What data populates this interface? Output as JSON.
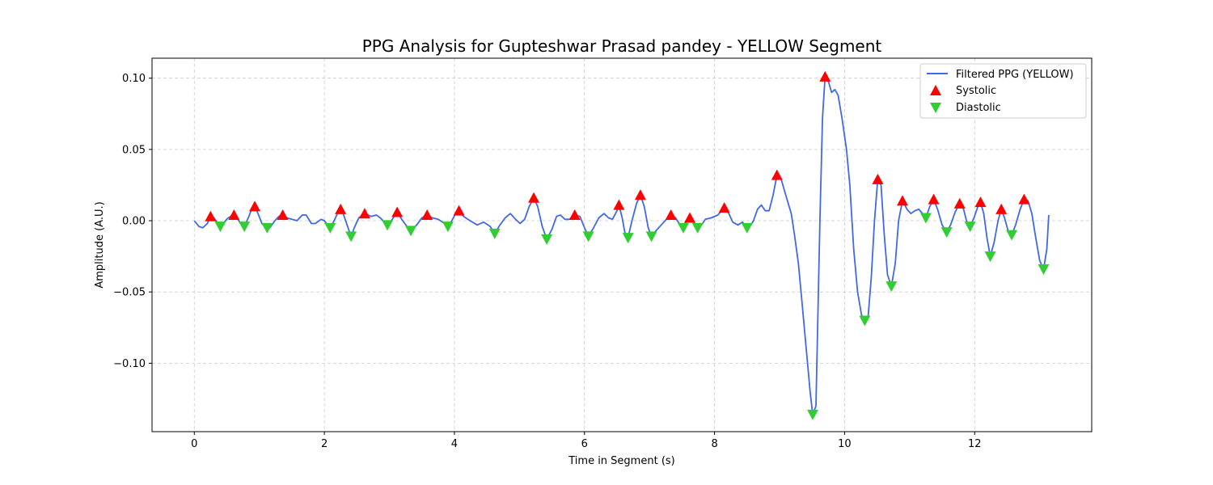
{
  "chart_data": {
    "type": "line",
    "title": "PPG Analysis for Gupteshwar Prasad pandey - YELLOW Segment",
    "xlabel": "Time in Segment (s)",
    "ylabel": "Amplitude (A.U.)",
    "xlim": [
      -0.65,
      13.8
    ],
    "ylim": [
      -0.148,
      0.114
    ],
    "xticks": [
      0,
      2,
      4,
      6,
      8,
      10,
      12
    ],
    "xtick_labels": [
      "0",
      "2",
      "4",
      "6",
      "8",
      "10",
      "12"
    ],
    "yticks": [
      0.1,
      0.05,
      0.0,
      -0.05,
      -0.1
    ],
    "ytick_labels": [
      "0.10",
      "0.05",
      "0.00",
      "−0.05",
      "−0.10"
    ],
    "grid": true,
    "legend_position": "upper right",
    "colors": {
      "line": "#4169e1",
      "systolic": "#ff0000",
      "diastolic": "#32cd32",
      "grid": "#cccccc"
    },
    "series": [
      {
        "name": "Filtered PPG (YELLOW)",
        "kind": "line",
        "points": [
          [
            0.0,
            0.0
          ],
          [
            0.07,
            -0.004
          ],
          [
            0.13,
            -0.005
          ],
          [
            0.2,
            -0.002
          ],
          [
            0.25,
            0.003
          ],
          [
            0.3,
            0.002
          ],
          [
            0.35,
            -0.001
          ],
          [
            0.4,
            -0.004
          ],
          [
            0.46,
            -0.001
          ],
          [
            0.52,
            0.002
          ],
          [
            0.6,
            0.004
          ],
          [
            0.66,
            0.002
          ],
          [
            0.71,
            -0.002
          ],
          [
            0.77,
            -0.004
          ],
          [
            0.84,
            0.003
          ],
          [
            0.88,
            0.008
          ],
          [
            0.93,
            0.01
          ],
          [
            0.98,
            0.005
          ],
          [
            1.04,
            -0.002
          ],
          [
            1.1,
            -0.005
          ],
          [
            1.16,
            -0.005
          ],
          [
            1.24,
            0.0
          ],
          [
            1.3,
            0.003
          ],
          [
            1.36,
            0.004
          ],
          [
            1.42,
            0.002
          ],
          [
            1.5,
            0.001
          ],
          [
            1.58,
            0.0
          ],
          [
            1.66,
            0.004
          ],
          [
            1.72,
            0.004
          ],
          [
            1.8,
            -0.002
          ],
          [
            1.86,
            -0.002
          ],
          [
            1.95,
            0.001
          ],
          [
            2.0,
            0.0
          ],
          [
            2.05,
            -0.003
          ],
          [
            2.09,
            -0.005
          ],
          [
            2.15,
            0.0
          ],
          [
            2.2,
            0.005
          ],
          [
            2.25,
            0.008
          ],
          [
            2.29,
            0.005
          ],
          [
            2.35,
            -0.003
          ],
          [
            2.41,
            -0.011
          ],
          [
            2.46,
            -0.005
          ],
          [
            2.53,
            0.002
          ],
          [
            2.62,
            0.005
          ],
          [
            2.72,
            0.003
          ],
          [
            2.8,
            0.004
          ],
          [
            2.86,
            0.002
          ],
          [
            2.94,
            -0.002
          ],
          [
            2.97,
            -0.003
          ],
          [
            3.03,
            0.0
          ],
          [
            3.12,
            0.006
          ],
          [
            3.19,
            0.001
          ],
          [
            3.27,
            -0.004
          ],
          [
            3.33,
            -0.007
          ],
          [
            3.42,
            -0.003
          ],
          [
            3.5,
            0.002
          ],
          [
            3.58,
            0.004
          ],
          [
            3.66,
            0.002
          ],
          [
            3.75,
            0.001
          ],
          [
            3.85,
            -0.002
          ],
          [
            3.9,
            -0.004
          ],
          [
            3.96,
            0.0
          ],
          [
            4.02,
            0.005
          ],
          [
            4.07,
            0.007
          ],
          [
            4.14,
            0.003
          ],
          [
            4.24,
            0.0
          ],
          [
            4.35,
            -0.003
          ],
          [
            4.45,
            -0.001
          ],
          [
            4.55,
            -0.004
          ],
          [
            4.62,
            -0.009
          ],
          [
            4.7,
            -0.003
          ],
          [
            4.78,
            0.002
          ],
          [
            4.86,
            0.005
          ],
          [
            4.94,
            0.001
          ],
          [
            5.01,
            -0.002
          ],
          [
            5.08,
            0.001
          ],
          [
            5.15,
            0.01
          ],
          [
            5.22,
            0.016
          ],
          [
            5.28,
            0.01
          ],
          [
            5.35,
            -0.004
          ],
          [
            5.42,
            -0.013
          ],
          [
            5.5,
            -0.006
          ],
          [
            5.57,
            0.003
          ],
          [
            5.63,
            0.004
          ],
          [
            5.7,
            0.001
          ],
          [
            5.77,
            0.001
          ],
          [
            5.85,
            0.004
          ],
          [
            5.93,
            0.003
          ],
          [
            6.0,
            -0.005
          ],
          [
            6.06,
            -0.011
          ],
          [
            6.14,
            -0.005
          ],
          [
            6.22,
            0.002
          ],
          [
            6.3,
            0.005
          ],
          [
            6.37,
            0.002
          ],
          [
            6.43,
            0.001
          ],
          [
            6.5,
            0.007
          ],
          [
            6.53,
            0.011
          ],
          [
            6.58,
            0.002
          ],
          [
            6.62,
            -0.008
          ],
          [
            6.67,
            -0.012
          ],
          [
            6.73,
            0.0
          ],
          [
            6.8,
            0.012
          ],
          [
            6.86,
            0.018
          ],
          [
            6.92,
            0.01
          ],
          [
            6.98,
            -0.005
          ],
          [
            7.03,
            -0.011
          ],
          [
            7.1,
            -0.007
          ],
          [
            7.18,
            -0.003
          ],
          [
            7.26,
            0.001
          ],
          [
            7.33,
            0.004
          ],
          [
            7.4,
            0.002
          ],
          [
            7.47,
            -0.003
          ],
          [
            7.52,
            -0.005
          ],
          [
            7.57,
            0.0
          ],
          [
            7.62,
            0.002
          ],
          [
            7.68,
            -0.001
          ],
          [
            7.74,
            -0.005
          ],
          [
            7.8,
            -0.003
          ],
          [
            7.86,
            0.001
          ],
          [
            7.95,
            0.002
          ],
          [
            8.05,
            0.004
          ],
          [
            8.15,
            0.009
          ],
          [
            8.22,
            0.005
          ],
          [
            8.28,
            -0.001
          ],
          [
            8.36,
            -0.003
          ],
          [
            8.43,
            -0.001
          ],
          [
            8.5,
            -0.005
          ],
          [
            8.56,
            -0.003
          ],
          [
            8.6,
            0.0
          ],
          [
            8.66,
            0.008
          ],
          [
            8.72,
            0.011
          ],
          [
            8.78,
            0.007
          ],
          [
            8.84,
            0.007
          ],
          [
            8.9,
            0.018
          ],
          [
            8.96,
            0.032
          ],
          [
            9.02,
            0.03
          ],
          [
            9.07,
            0.022
          ],
          [
            9.12,
            0.014
          ],
          [
            9.18,
            0.005
          ],
          [
            9.23,
            -0.01
          ],
          [
            9.29,
            -0.03
          ],
          [
            9.35,
            -0.06
          ],
          [
            9.41,
            -0.09
          ],
          [
            9.47,
            -0.12
          ],
          [
            9.51,
            -0.136
          ],
          [
            9.56,
            -0.13
          ],
          [
            9.62,
            0.0
          ],
          [
            9.66,
            0.072
          ],
          [
            9.7,
            0.101
          ],
          [
            9.75,
            0.098
          ],
          [
            9.8,
            0.09
          ],
          [
            9.85,
            0.092
          ],
          [
            9.9,
            0.088
          ],
          [
            9.96,
            0.072
          ],
          [
            10.03,
            0.05
          ],
          [
            10.08,
            0.025
          ],
          [
            10.14,
            -0.02
          ],
          [
            10.2,
            -0.05
          ],
          [
            10.26,
            -0.066
          ],
          [
            10.31,
            -0.07
          ],
          [
            10.36,
            -0.068
          ],
          [
            10.41,
            -0.04
          ],
          [
            10.46,
            0.0
          ],
          [
            10.51,
            0.029
          ],
          [
            10.56,
            0.025
          ],
          [
            10.61,
            -0.01
          ],
          [
            10.66,
            -0.038
          ],
          [
            10.72,
            -0.046
          ],
          [
            10.78,
            -0.03
          ],
          [
            10.83,
            0.0
          ],
          [
            10.89,
            0.014
          ],
          [
            10.96,
            0.008
          ],
          [
            11.02,
            0.005
          ],
          [
            11.08,
            0.007
          ],
          [
            11.14,
            0.008
          ],
          [
            11.2,
            0.005
          ],
          [
            11.25,
            0.002
          ],
          [
            11.31,
            0.01
          ],
          [
            11.37,
            0.015
          ],
          [
            11.43,
            0.008
          ],
          [
            11.5,
            -0.003
          ],
          [
            11.57,
            -0.008
          ],
          [
            11.63,
            -0.003
          ],
          [
            11.7,
            0.006
          ],
          [
            11.77,
            0.012
          ],
          [
            11.83,
            0.008
          ],
          [
            11.88,
            -0.001
          ],
          [
            11.93,
            -0.004
          ],
          [
            11.99,
            0.002
          ],
          [
            12.05,
            0.01
          ],
          [
            12.09,
            0.013
          ],
          [
            12.14,
            0.005
          ],
          [
            12.19,
            -0.012
          ],
          [
            12.24,
            -0.025
          ],
          [
            12.3,
            -0.015
          ],
          [
            12.36,
            0.0
          ],
          [
            12.41,
            0.008
          ],
          [
            12.46,
            0.002
          ],
          [
            12.52,
            -0.008
          ],
          [
            12.57,
            -0.01
          ],
          [
            12.63,
            -0.003
          ],
          [
            12.7,
            0.008
          ],
          [
            12.76,
            0.015
          ],
          [
            12.82,
            0.014
          ],
          [
            12.88,
            0.005
          ],
          [
            12.94,
            -0.012
          ],
          [
            13.0,
            -0.028
          ],
          [
            13.06,
            -0.034
          ],
          [
            13.11,
            -0.02
          ],
          [
            13.14,
            0.004
          ]
        ]
      },
      {
        "name": "Systolic",
        "kind": "marker-up",
        "points": [
          [
            0.25,
            0.003
          ],
          [
            0.61,
            0.004
          ],
          [
            0.93,
            0.01
          ],
          [
            1.36,
            0.004
          ],
          [
            2.25,
            0.008
          ],
          [
            2.62,
            0.005
          ],
          [
            3.12,
            0.006
          ],
          [
            3.58,
            0.004
          ],
          [
            4.07,
            0.007
          ],
          [
            5.22,
            0.016
          ],
          [
            5.85,
            0.004
          ],
          [
            6.53,
            0.011
          ],
          [
            6.86,
            0.018
          ],
          [
            7.33,
            0.004
          ],
          [
            7.62,
            0.002
          ],
          [
            8.15,
            0.009
          ],
          [
            8.96,
            0.032
          ],
          [
            9.7,
            0.101
          ],
          [
            10.51,
            0.029
          ],
          [
            10.89,
            0.014
          ],
          [
            11.37,
            0.015
          ],
          [
            11.77,
            0.012
          ],
          [
            12.09,
            0.013
          ],
          [
            12.41,
            0.008
          ],
          [
            12.76,
            0.015
          ]
        ]
      },
      {
        "name": "Diastolic",
        "kind": "marker-down",
        "points": [
          [
            0.4,
            -0.004
          ],
          [
            0.77,
            -0.004
          ],
          [
            1.12,
            -0.005
          ],
          [
            2.09,
            -0.005
          ],
          [
            2.41,
            -0.011
          ],
          [
            2.97,
            -0.003
          ],
          [
            3.33,
            -0.007
          ],
          [
            3.9,
            -0.004
          ],
          [
            4.62,
            -0.009
          ],
          [
            5.42,
            -0.013
          ],
          [
            6.06,
            -0.011
          ],
          [
            6.67,
            -0.012
          ],
          [
            7.03,
            -0.011
          ],
          [
            7.52,
            -0.005
          ],
          [
            7.74,
            -0.005
          ],
          [
            8.5,
            -0.005
          ],
          [
            9.51,
            -0.136
          ],
          [
            10.31,
            -0.07
          ],
          [
            10.72,
            -0.046
          ],
          [
            11.25,
            0.002
          ],
          [
            11.57,
            -0.008
          ],
          [
            11.93,
            -0.004
          ],
          [
            12.24,
            -0.025
          ],
          [
            12.57,
            -0.01
          ],
          [
            13.06,
            -0.034
          ]
        ]
      }
    ]
  }
}
